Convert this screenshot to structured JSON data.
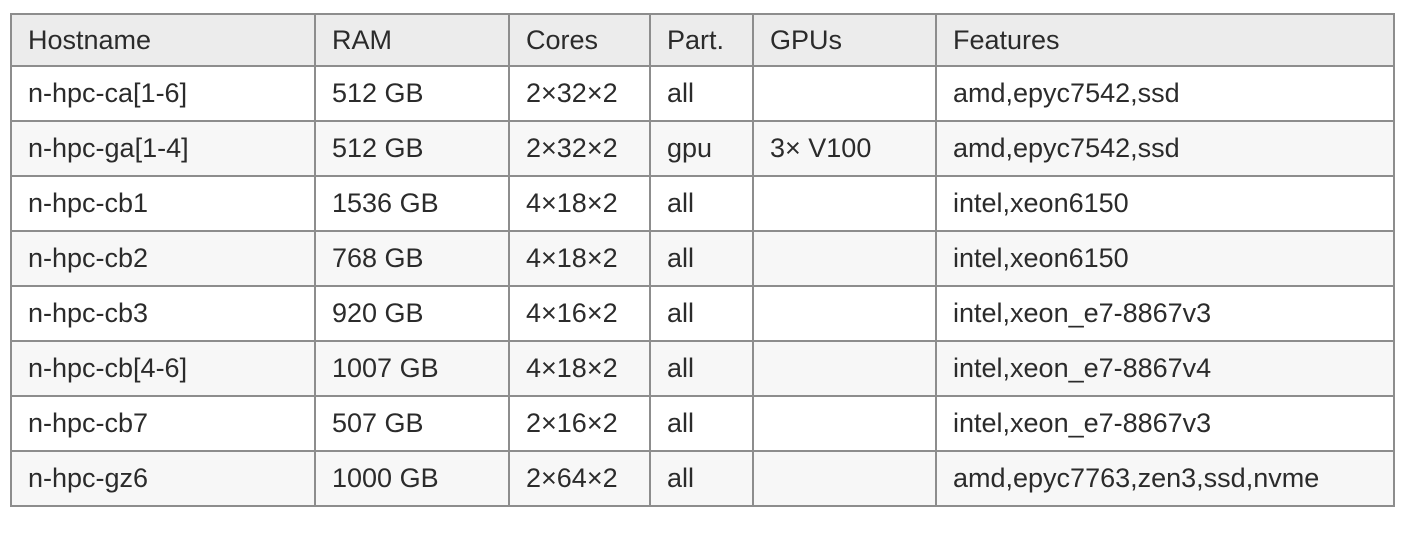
{
  "table": {
    "columns": [
      "Hostname",
      "RAM",
      "Cores",
      "Part.",
      "GPUs",
      "Features"
    ],
    "rows": [
      {
        "hostname": "n-hpc-ca[1-6]",
        "ram": "512 GB",
        "cores": "2×32×2",
        "partition": "all",
        "gpus": "",
        "features": "amd,epyc7542,ssd"
      },
      {
        "hostname": "n-hpc-ga[1-4]",
        "ram": "512 GB",
        "cores": "2×32×2",
        "partition": "gpu",
        "gpus": "3× V100",
        "features": "amd,epyc7542,ssd"
      },
      {
        "hostname": "n-hpc-cb1",
        "ram": "1536 GB",
        "cores": "4×18×2",
        "partition": "all",
        "gpus": "",
        "features": "intel,xeon6150"
      },
      {
        "hostname": "n-hpc-cb2",
        "ram": "768 GB",
        "cores": "4×18×2",
        "partition": "all",
        "gpus": "",
        "features": "intel,xeon6150"
      },
      {
        "hostname": "n-hpc-cb3",
        "ram": "920 GB",
        "cores": "4×16×2",
        "partition": "all",
        "gpus": "",
        "features": "intel,xeon_e7-8867v3"
      },
      {
        "hostname": "n-hpc-cb[4-6]",
        "ram": "1007 GB",
        "cores": "4×18×2",
        "partition": "all",
        "gpus": "",
        "features": "intel,xeon_e7-8867v4"
      },
      {
        "hostname": "n-hpc-cb7",
        "ram": "507 GB",
        "cores": "2×16×2",
        "partition": "all",
        "gpus": "",
        "features": "intel,xeon_e7-8867v3"
      },
      {
        "hostname": "n-hpc-gz6",
        "ram": "1000 GB",
        "cores": "2×64×2",
        "partition": "all",
        "gpus": "",
        "features": "amd,epyc7763,zen3,ssd,nvme"
      }
    ],
    "colors": {
      "header_bg": "#ececec",
      "row_bg": "#ffffff",
      "row_alt_bg": "#f7f7f7",
      "border": "#8d8d8d",
      "header_border_bottom": "#757575",
      "text": "#2b2b2b"
    }
  }
}
